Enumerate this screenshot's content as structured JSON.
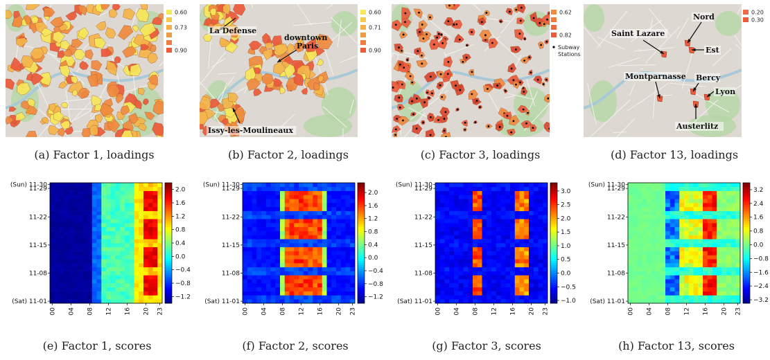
{
  "figure": {
    "maps": [
      {
        "caption": "(a) Factor 1, loadings",
        "legend": [
          "0.60",
          "",
          "0.73",
          "",
          "",
          "0.90"
        ],
        "annotations": [],
        "palette": [
          "#f7e85a",
          "#f5b54a",
          "#f08a3e",
          "#ec5a3a"
        ],
        "density": 0.72
      },
      {
        "caption": "(b) Factor 2, loadings",
        "legend": [
          "0.60",
          "",
          "0.71",
          "",
          "",
          "0.90"
        ],
        "annotations": [
          "La Defense",
          "downtown Paris",
          "Issy-les-Moulineaux"
        ],
        "palette": [
          "#f7e85a",
          "#f5b54a",
          "#f08a3e",
          "#ec5a3a"
        ],
        "density": 0.45
      },
      {
        "caption": "(c) Factor 3, loadings",
        "legend": [
          "0.62",
          "",
          "",
          "0.82"
        ],
        "legend_extra": [
          "Subway",
          "Stations"
        ],
        "annotations": [],
        "palette": [
          "#f08a3e",
          "#ec5a3a",
          "#d9472f"
        ],
        "density": 0.55
      },
      {
        "caption": "(d) Factor 13, loadings",
        "legend": [
          "0.20",
          "0.30"
        ],
        "annotations": [
          "Saint Lazare",
          "Nord",
          "Est",
          "Montparnasse",
          "Bercy",
          "Lyon",
          "Austerlitz"
        ],
        "palette": [
          "#ec5a3a"
        ],
        "density": 0.0
      }
    ],
    "heatmaps": [
      {
        "caption": "(e) Factor 1, scores",
        "colorbar_ticks": [
          "2.0",
          "1.6",
          "1.2",
          "0.8",
          "0.4",
          "0.0",
          "−0.4",
          "−0.8",
          "−1.2"
        ],
        "vmin": -1.4,
        "vmax": 2.2,
        "pattern": "f1"
      },
      {
        "caption": "(f) Factor 2, scores",
        "colorbar_ticks": [
          "2.0",
          "1.6",
          "1.2",
          "0.8",
          "0.4",
          "0.0",
          "−0.4",
          "−0.8",
          "−1.2"
        ],
        "vmin": -1.4,
        "vmax": 2.3,
        "pattern": "f2"
      },
      {
        "caption": "(g) Factor 3, scores",
        "colorbar_ticks": [
          "3.0",
          "2.5",
          "2.0",
          "1.5",
          "1.0",
          "0.5",
          "0.0",
          "−0.5",
          "−1.0"
        ],
        "vmin": -1.1,
        "vmax": 3.3,
        "pattern": "f3"
      },
      {
        "caption": "(h) Factor 13, scores",
        "colorbar_ticks": [
          "3.2",
          "2.4",
          "1.6",
          "0.8",
          "0.0",
          "−0.8",
          "−1.6",
          "−2.4",
          "−3.2"
        ],
        "vmin": -3.4,
        "vmax": 3.6,
        "pattern": "f13"
      }
    ],
    "y_ticks": [
      "(Sun) 11-30",
      "11-29",
      "11-22",
      "11-15",
      "11-08",
      "(Sat) 11-01"
    ],
    "x_ticks": [
      "00",
      "04",
      "08",
      "12",
      "16",
      "20",
      "23"
    ]
  }
}
